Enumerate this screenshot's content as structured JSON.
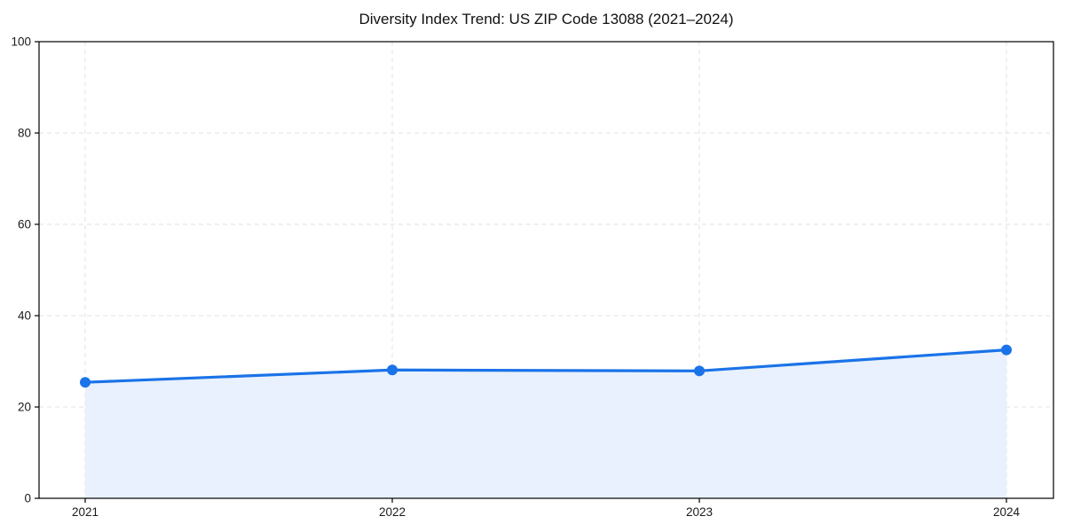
{
  "chart_data": {
    "type": "line",
    "title": "Diversity Index Trend: US ZIP Code 13088 (2021–2024)",
    "x": [
      2021,
      2022,
      2023,
      2024
    ],
    "x_tick_labels": [
      "2021",
      "2022",
      "2023",
      "2024"
    ],
    "series": [
      {
        "name": "Diversity Index",
        "values": [
          25.4,
          28.1,
          27.9,
          32.5
        ]
      }
    ],
    "xlabel": "",
    "ylabel": "",
    "ylim": [
      0,
      100
    ],
    "yticks": [
      0,
      20,
      40,
      60,
      80,
      100
    ],
    "grid": "dashed, both axes",
    "legend_position": "none",
    "area_fill_below_line": true,
    "marker": "circle",
    "colors": {
      "line": "#1a73e8",
      "marker": "#1a73e8",
      "area_fill": "#e8f1fd",
      "grid": "#e0e0e0",
      "axis": "#000000",
      "tick_text": "#1a1a1a",
      "background": "#ffffff"
    }
  }
}
